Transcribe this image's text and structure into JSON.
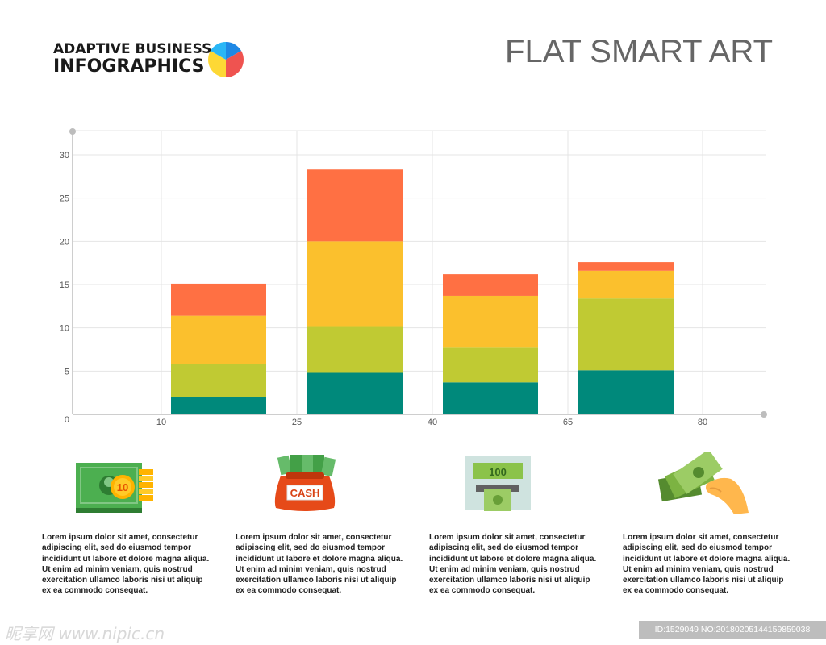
{
  "header": {
    "brand_line1": "ADAPTIVE BUSINESS",
    "brand_line2": "INFOGRAPHICS",
    "title": "FLAT SMART ART"
  },
  "colors": {
    "teal": "#00897b",
    "olive": "#c0ca33",
    "amber": "#fbc02d",
    "orange": "#ff7043",
    "grid": "#e4e4e4",
    "axis": "#bdbdbd"
  },
  "chart_data": {
    "type": "bar",
    "stacked": true,
    "grid": true,
    "x_ticks": [
      "0",
      "10",
      "25",
      "40",
      "65",
      "80"
    ],
    "y_ticks": [
      0,
      5,
      10,
      15,
      20,
      25,
      30
    ],
    "ylim": [
      0,
      32
    ],
    "bars": [
      {
        "segments": [
          2,
          3.8,
          5.6,
          3.7
        ]
      },
      {
        "segments": [
          4.8,
          5.4,
          9.8,
          8.3
        ]
      },
      {
        "segments": [
          3.7,
          4,
          6,
          2.5
        ]
      },
      {
        "segments": [
          5.1,
          8.3,
          3.2,
          1
        ]
      }
    ]
  },
  "items": [
    {
      "icon": "cash-coins-icon",
      "text": "Lorem ipsum dolor sit amet, consectetur adipiscing elit, sed do eiusmod tempor incididunt ut labore et dolore magna aliqua. Ut enim ad minim veniam, quis nostrud exercitation ullamco laboris nisi ut aliquip ex ea commodo consequat."
    },
    {
      "icon": "cash-bag-icon",
      "label": "CASH",
      "text": "Lorem ipsum dolor sit amet, consectetur adipiscing elit, sed do eiusmod tempor incididunt ut labore et dolore magna aliqua. Ut enim ad minim veniam, quis nostrud exercitation ullamco laboris nisi ut aliquip ex ea commodo consequat."
    },
    {
      "icon": "atm-icon",
      "label": "100",
      "text": "Lorem ipsum dolor sit amet, consectetur adipiscing elit, sed do eiusmod tempor incididunt ut labore et dolore magna aliqua. Ut enim ad minim veniam, quis nostrud exercitation ullamco laboris nisi ut aliquip ex ea commodo consequat."
    },
    {
      "icon": "hand-money-icon",
      "text": "Lorem ipsum dolor sit amet, consectetur adipiscing elit, sed do eiusmod tempor incididunt ut labore et dolore magna aliqua. Ut enim ad minim veniam, quis nostrud exercitation ullamco laboris nisi ut aliquip ex ea commodo consequat."
    }
  ],
  "watermark": {
    "left": "昵享网 www.nipic.cn",
    "right": "ID:1529049 NO:20180205144159859038"
  }
}
